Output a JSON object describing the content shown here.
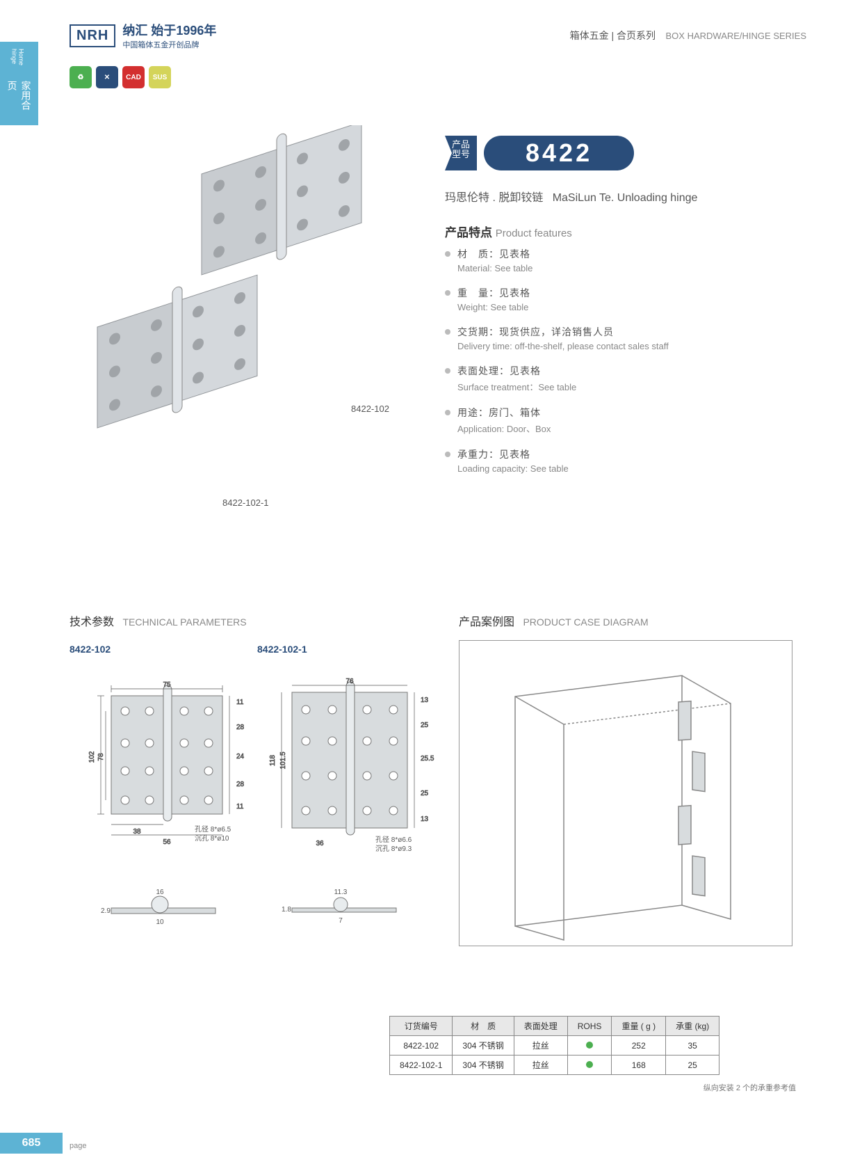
{
  "header": {
    "logo": "NRH",
    "logo_cn": "纳汇 始于1996年",
    "logo_sub": "中国箱体五金开创品牌",
    "right_cn": "箱体五金 | 合页系列",
    "right_en": "BOX HARDWARE/HINGE SERIES"
  },
  "side_tab": {
    "cn": "家用合页",
    "en": "Home hinge"
  },
  "badges": [
    "",
    "✕",
    "CAD",
    "SUS"
  ],
  "product": {
    "label": "产品\n型号",
    "number": "8422",
    "name_cn": "玛思伦特 . 脱卸铰链",
    "name_en": "MaSiLun Te. Unloading hinge"
  },
  "features_title": {
    "cn": "产品特点",
    "en": "Product features"
  },
  "features": [
    {
      "cn": "材　质：见表格",
      "en": "Material: See table"
    },
    {
      "cn": "重　量：见表格",
      "en": "Weight: See table"
    },
    {
      "cn": "交货期：现货供应，详洽销售人员",
      "en": "Delivery time: off-the-shelf, please contact sales staff"
    },
    {
      "cn": "表面处理：见表格",
      "en": "Surface treatment：See table"
    },
    {
      "cn": "用途：房门、箱体",
      "en": "Application: Door、Box"
    },
    {
      "cn": "承重力：见表格",
      "en": "Loading capacity: See table"
    }
  ],
  "img_labels": {
    "a": "8422-102",
    "b": "8422-102-1"
  },
  "tech_title": {
    "cn": "技术参数",
    "en": "TECHNICAL PARAMETERS"
  },
  "case_title": {
    "cn": "产品案例图",
    "en": "PRODUCT CASE DIAGRAM"
  },
  "diag_labels": {
    "a": "8422-102",
    "b": "8422-102-1"
  },
  "diagram_a": {
    "width_top": "75",
    "width_bottom": "56",
    "width_bottom2": "38",
    "height": "102",
    "height_inner": "78",
    "holes": [
      "11",
      "28",
      "24",
      "28",
      "11"
    ],
    "hole_note1": "孔径 8*ø6.5",
    "hole_note2": "沉孔 8*ø10",
    "side_w": "16",
    "side_r": "10",
    "thick": "2.9"
  },
  "diagram_b": {
    "width_top": "76",
    "width_bottom2": "36",
    "height": "118",
    "height_inner": "101.5",
    "holes": [
      "13",
      "25",
      "25.5",
      "25",
      "13"
    ],
    "hole_note1": "孔径 8*ø6.6",
    "hole_note2": "沉孔 8*ø9.3",
    "side_w": "11.3",
    "side_r": "7",
    "thick": "1.8"
  },
  "table": {
    "headers": [
      "订货编号",
      "材　质",
      "表面处理",
      "ROHS",
      "重量 ( g )",
      "承重 (kg)"
    ],
    "rows": [
      [
        "8422-102",
        "304 不锈钢",
        "拉丝",
        "dot",
        "252",
        "35"
      ],
      [
        "8422-102-1",
        "304 不锈钢",
        "拉丝",
        "dot",
        "168",
        "25"
      ]
    ],
    "note": "纵向安装 2 个的承重参考值"
  },
  "footer": {
    "num": "685",
    "label": "page"
  },
  "colors": {
    "brand": "#2a4d7a",
    "accent": "#5db3d4",
    "metal": "#c8ccd0",
    "metal_dark": "#a0a4a8",
    "line": "#666"
  }
}
